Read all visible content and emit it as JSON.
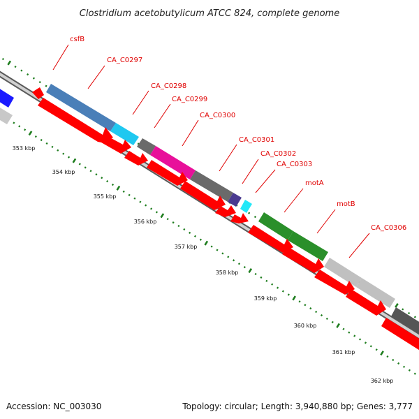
{
  "title": "Clostridium acetobutylicum ATCC 824, complete genome",
  "footer": {
    "accession": "Accession: NC_003030",
    "summary": "Topology: circular; Length: 3,940,880 bp; Genes: 3,777"
  },
  "colors": {
    "backbone_outer": "#5a5a5a",
    "backbone_inner": "#d0d0d0",
    "tick": "#1e7d1e",
    "label": "#e00000",
    "cds": "#ff0000"
  },
  "kbp_labels": [
    "353 kbp",
    "354 kbp",
    "355 kbp",
    "356 kbp",
    "357 kbp",
    "358 kbp",
    "359 kbp",
    "360 kbp",
    "361 kbp",
    "362 kbp"
  ],
  "genes": [
    {
      "name": "csfB",
      "color": "#ff0000"
    },
    {
      "name": "CA_C0297",
      "color": "#4a7fb8"
    },
    {
      "name": "CA_C0298",
      "color": "#1fc8f0"
    },
    {
      "name": "CA_C0299",
      "color": "#6a6a6a"
    },
    {
      "name": "CA_C0300",
      "color": "#e8109a"
    },
    {
      "name": "CA_C0301",
      "color": "#6a6a6a"
    },
    {
      "name": "CA_C0302",
      "color": "#4a3a90"
    },
    {
      "name": "CA_C0303",
      "color": "#22e8f8"
    },
    {
      "name": "motA",
      "color": "#2a8f2a"
    },
    {
      "name": "motB",
      "color": "#2a8f2a"
    },
    {
      "name": "CA_C0306",
      "color": "#c0c0c0"
    }
  ]
}
